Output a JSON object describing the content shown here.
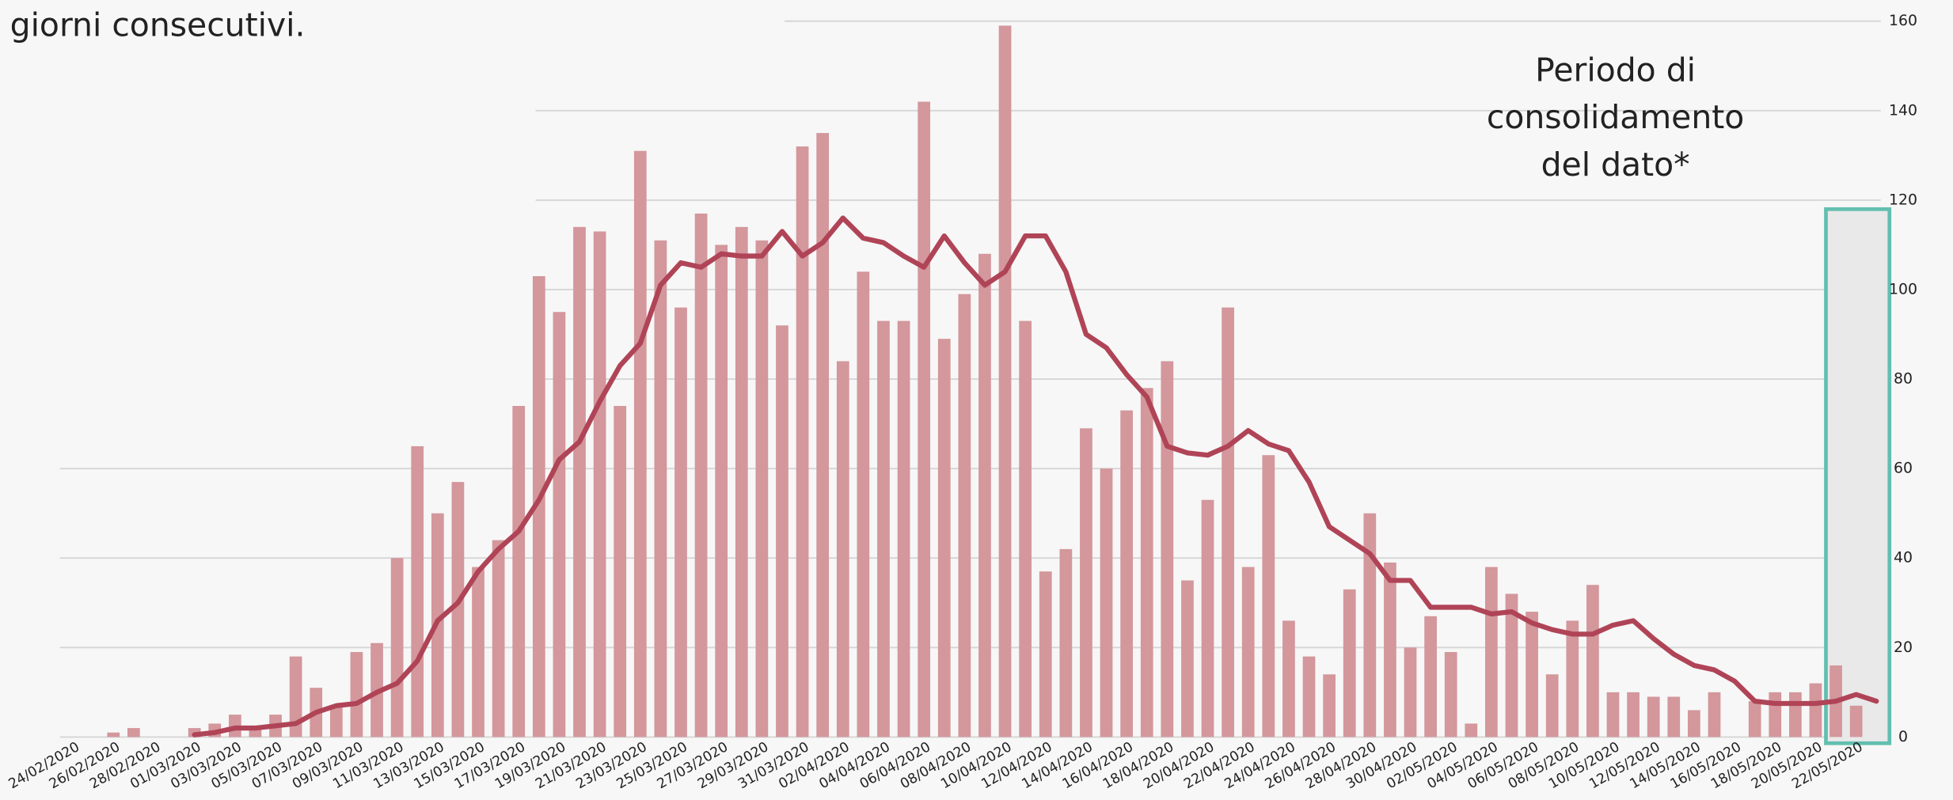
{
  "chart_data": {
    "type": "bar_line",
    "title": "giorni consecutivi.",
    "annotation": [
      "Periodo di",
      "consolidamento",
      "del dato*"
    ],
    "categories": [
      "24/02/2020",
      null,
      "26/02/2020",
      null,
      "28/02/2020",
      null,
      "01/03/2020",
      null,
      "03/03/2020",
      null,
      "05/03/2020",
      null,
      "07/03/2020",
      null,
      "09/03/2020",
      null,
      "11/03/2020",
      null,
      "13/03/2020",
      null,
      "15/03/2020",
      null,
      "17/03/2020",
      null,
      "19/03/2020",
      null,
      "21/03/2020",
      null,
      "23/03/2020",
      null,
      "25/03/2020",
      null,
      "27/03/2020",
      null,
      "29/03/2020",
      null,
      "31/03/2020",
      null,
      "02/04/2020",
      null,
      "04/04/2020",
      null,
      "06/04/2020",
      null,
      "08/04/2020",
      null,
      "10/04/2020",
      null,
      "12/04/2020",
      null,
      "14/04/2020",
      null,
      "16/04/2020",
      null,
      "18/04/2020",
      null,
      "20/04/2020",
      null,
      "22/04/2020",
      null,
      "24/04/2020",
      null,
      "26/04/2020",
      null,
      "28/04/2020",
      null,
      "30/04/2020",
      null,
      "02/05/2020",
      null,
      "04/05/2020",
      null,
      "06/05/2020",
      null,
      "08/05/2020",
      null,
      "10/05/2020",
      null,
      "12/05/2020",
      null,
      "14/05/2020",
      null,
      "16/05/2020",
      null,
      "18/05/2020",
      null,
      "20/05/2020",
      null,
      "22/05/2020",
      null
    ],
    "series": [
      {
        "kind": "bar",
        "color": "#d3979c",
        "values": [
          0,
          0,
          1,
          2,
          0,
          0,
          2,
          3,
          5,
          2,
          5,
          18,
          11,
          7,
          19,
          21,
          40,
          65,
          50,
          57,
          38,
          44,
          74,
          103,
          95,
          114,
          113,
          74,
          131,
          111,
          96,
          117,
          110,
          114,
          111,
          92,
          132,
          135,
          84,
          104,
          93,
          93,
          142,
          89,
          99,
          108,
          159,
          93,
          37,
          42,
          69,
          60,
          73,
          78,
          84,
          35,
          53,
          96,
          38,
          63,
          26,
          18,
          14,
          33,
          50,
          39,
          20,
          27,
          19,
          3,
          38,
          32,
          28,
          14,
          26,
          34,
          10,
          10,
          9,
          9,
          6,
          10,
          0,
          8,
          10,
          10,
          12,
          16,
          7,
          null
        ]
      },
      {
        "kind": "line",
        "color": "#b04457",
        "values": [
          null,
          null,
          null,
          null,
          null,
          null,
          0.5,
          1,
          2,
          2,
          2.5,
          3,
          5.5,
          7,
          7.5,
          10,
          12,
          17,
          26,
          30,
          37,
          42,
          46,
          53,
          62,
          66,
          75,
          83,
          88,
          101,
          106,
          105,
          108,
          107.5,
          107.5,
          113,
          107.5,
          110.5,
          116,
          111.5,
          110.5,
          107.5,
          105,
          112,
          106,
          101,
          104,
          112,
          112,
          104,
          90,
          87,
          81,
          76,
          65,
          63.5,
          63,
          65,
          68.5,
          65.5,
          64,
          57,
          47,
          44,
          41,
          35,
          35,
          29,
          29,
          29,
          27.5,
          28,
          25.5,
          24,
          23,
          23,
          25,
          26,
          22,
          18.5,
          16,
          15,
          12.5,
          8,
          7.5,
          7.5,
          7.5,
          8,
          9.5,
          8
        ]
      }
    ],
    "ylim": [
      0,
      160
    ],
    "yticks": [
      0,
      20,
      40,
      60,
      80,
      100,
      120,
      140,
      160
    ],
    "grid": true
  }
}
